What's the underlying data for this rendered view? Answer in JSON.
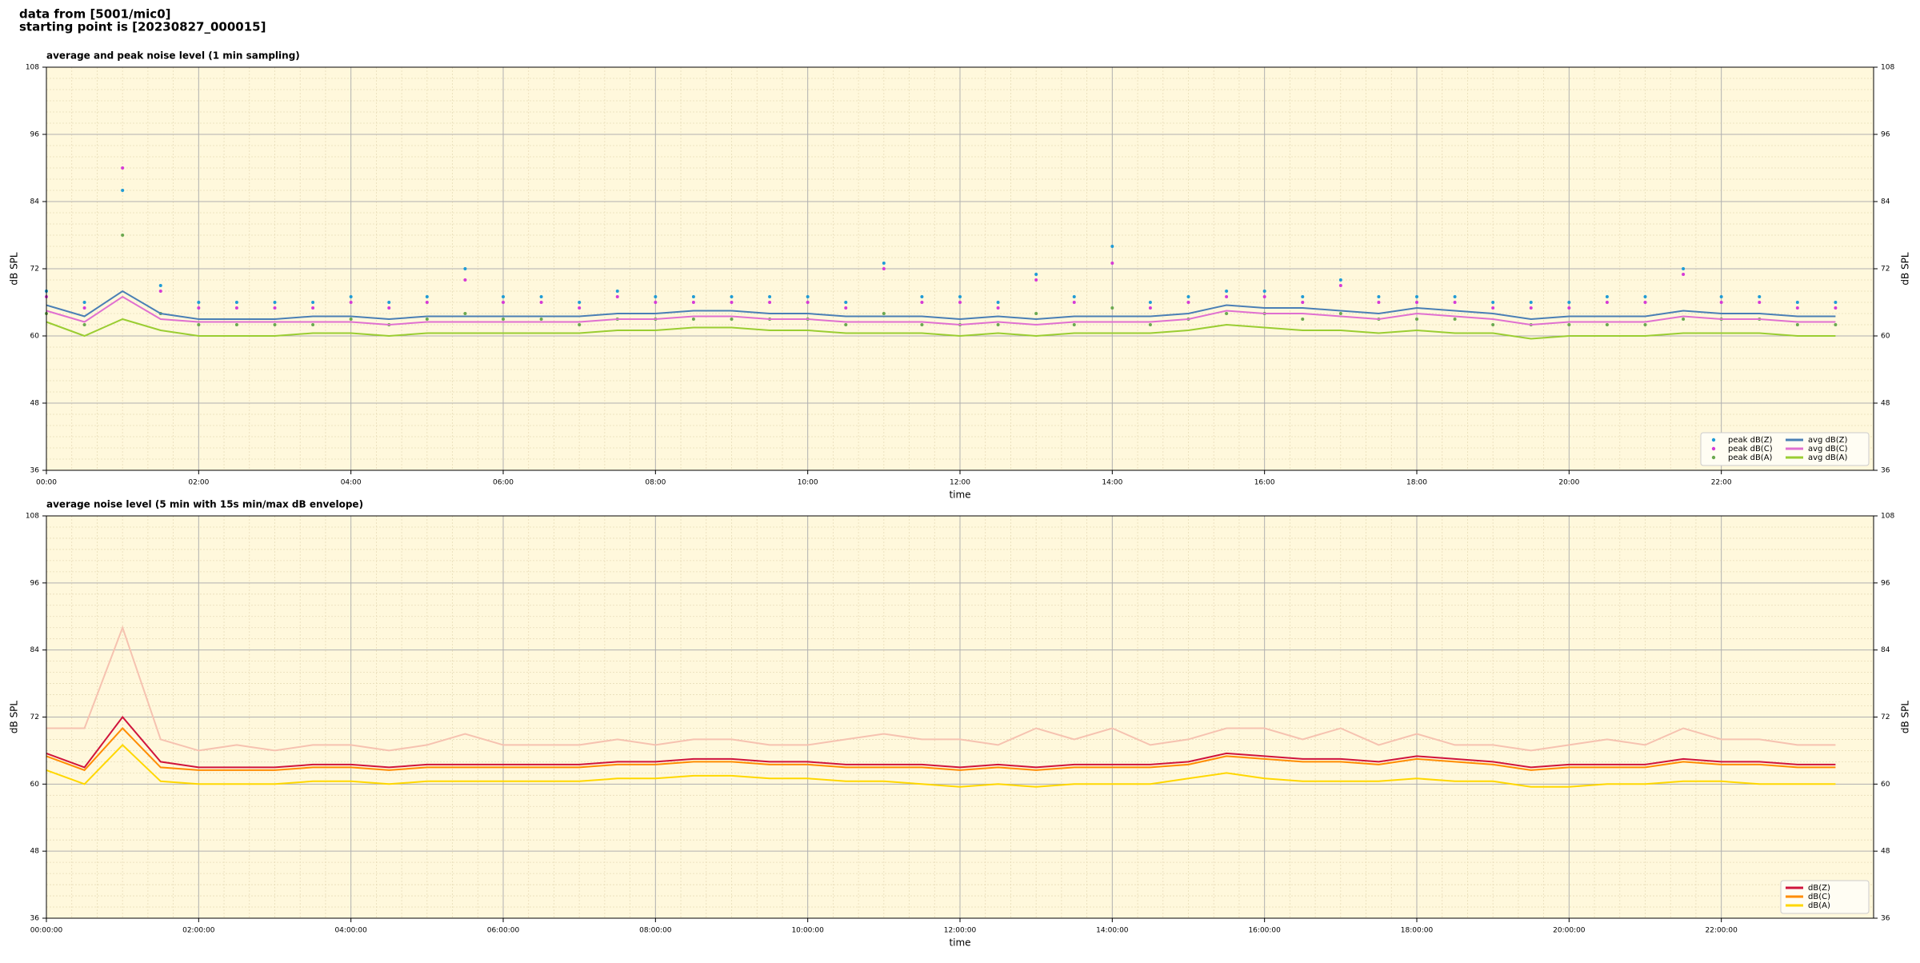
{
  "header": {
    "line1": "data from [5001/mic0]",
    "line2": "starting point is [20230827_000015]"
  },
  "chart_data": [
    {
      "type": "line",
      "title": "average and peak noise level (1 min sampling)",
      "xlabel": "time",
      "ylabel": "dB SPL",
      "xlim": [
        0,
        24
      ],
      "ylim": [
        36,
        108
      ],
      "yticks": [
        36,
        48,
        60,
        72,
        84,
        96,
        108
      ],
      "xticks": [
        {
          "value": 0,
          "label": "00:00"
        },
        {
          "value": 2,
          "label": "02:00"
        },
        {
          "value": 4,
          "label": "04:00"
        },
        {
          "value": 6,
          "label": "06:00"
        },
        {
          "value": 8,
          "label": "08:00"
        },
        {
          "value": 10,
          "label": "10:00"
        },
        {
          "value": 12,
          "label": "12:00"
        },
        {
          "value": 14,
          "label": "14:00"
        },
        {
          "value": 16,
          "label": "16:00"
        },
        {
          "value": 18,
          "label": "18:00"
        },
        {
          "value": 20,
          "label": "20:00"
        },
        {
          "value": 22,
          "label": "22:00"
        }
      ],
      "grid": true,
      "legend": "lower right",
      "background": "#fff8dc",
      "x": [
        0,
        0.5,
        1,
        1.5,
        2,
        2.5,
        3,
        3.5,
        4,
        4.5,
        5,
        5.5,
        6,
        6.5,
        7,
        7.5,
        8,
        8.5,
        9,
        9.5,
        10,
        10.5,
        11,
        11.5,
        12,
        12.5,
        13,
        13.5,
        14,
        14.5,
        15,
        15.5,
        16,
        16.5,
        17,
        17.5,
        18,
        18.5,
        19,
        19.5,
        20,
        20.5,
        21,
        21.5,
        22,
        22.5,
        23,
        23.5
      ],
      "series": [
        {
          "name": "peak dB(Z)",
          "style": "points",
          "color": "#1f9bd6",
          "values": [
            68,
            66,
            86,
            69,
            66,
            66,
            66,
            66,
            67,
            66,
            67,
            72,
            67,
            67,
            66,
            68,
            67,
            67,
            67,
            67,
            67,
            66,
            73,
            67,
            67,
            66,
            71,
            67,
            76,
            66,
            67,
            68,
            68,
            67,
            70,
            67,
            67,
            67,
            66,
            66,
            66,
            67,
            67,
            72,
            67,
            67,
            66,
            66
          ]
        },
        {
          "name": "peak dB(C)",
          "style": "points",
          "color": "#d63ad6",
          "values": [
            67,
            65,
            90,
            68,
            65,
            65,
            65,
            65,
            66,
            65,
            66,
            70,
            66,
            66,
            65,
            67,
            66,
            66,
            66,
            66,
            66,
            65,
            72,
            66,
            66,
            65,
            70,
            66,
            73,
            65,
            66,
            67,
            67,
            66,
            69,
            66,
            66,
            66,
            65,
            65,
            65,
            66,
            66,
            71,
            66,
            66,
            65,
            65
          ]
        },
        {
          "name": "peak dB(A)",
          "style": "points",
          "color": "#6aa84f",
          "values": [
            64,
            62,
            78,
            64,
            62,
            62,
            62,
            62,
            63,
            62,
            63,
            64,
            63,
            63,
            62,
            63,
            63,
            63,
            63,
            63,
            63,
            62,
            64,
            62,
            62,
            62,
            64,
            62,
            65,
            62,
            63,
            64,
            64,
            63,
            64,
            63,
            63,
            63,
            62,
            62,
            62,
            62,
            62,
            63,
            63,
            63,
            62,
            62
          ]
        },
        {
          "name": "avg dB(Z)",
          "style": "line",
          "color": "#4a7fb5",
          "values": [
            65.5,
            63.5,
            68,
            64,
            63,
            63,
            63,
            63.5,
            63.5,
            63,
            63.5,
            63.5,
            63.5,
            63.5,
            63.5,
            64,
            64,
            64.5,
            64.5,
            64,
            64,
            63.5,
            63.5,
            63.5,
            63,
            63.5,
            63,
            63.5,
            63.5,
            63.5,
            64,
            65.5,
            65,
            65,
            64.5,
            64,
            65,
            64.5,
            64,
            63,
            63.5,
            63.5,
            63.5,
            64.5,
            64,
            64,
            63.5,
            63.5
          ]
        },
        {
          "name": "avg dB(C)",
          "style": "line",
          "color": "#e070d0",
          "values": [
            64.5,
            62.5,
            67,
            63,
            62.5,
            62.5,
            62.5,
            62.5,
            62.5,
            62,
            62.5,
            62.5,
            62.5,
            62.5,
            62.5,
            63,
            63,
            63.5,
            63.5,
            63,
            63,
            62.5,
            62.5,
            62.5,
            62,
            62.5,
            62,
            62.5,
            62.5,
            62.5,
            63,
            64.5,
            64,
            64,
            63.5,
            63,
            64,
            63.5,
            63,
            62,
            62.5,
            62.5,
            62.5,
            63.5,
            63,
            63,
            62.5,
            62.5
          ]
        },
        {
          "name": "avg dB(A)",
          "style": "line",
          "color": "#9acd32",
          "values": [
            62.5,
            60,
            63,
            61,
            60,
            60,
            60,
            60.5,
            60.5,
            60,
            60.5,
            60.5,
            60.5,
            60.5,
            60.5,
            61,
            61,
            61.5,
            61.5,
            61,
            61,
            60.5,
            60.5,
            60.5,
            60,
            60.5,
            60,
            60.5,
            60.5,
            60.5,
            61,
            62,
            61.5,
            61,
            61,
            60.5,
            61,
            60.5,
            60.5,
            59.5,
            60,
            60,
            60,
            60.5,
            60.5,
            60.5,
            60,
            60
          ]
        }
      ]
    },
    {
      "type": "line",
      "title": "average noise level (5 min with 15s min/max dB envelope)",
      "xlabel": "time",
      "ylabel": "dB SPL",
      "xlim": [
        0,
        24
      ],
      "ylim": [
        36,
        108
      ],
      "yticks": [
        36,
        48,
        60,
        72,
        84,
        96,
        108
      ],
      "xticks": [
        {
          "value": 0,
          "label": "00:00:00"
        },
        {
          "value": 2,
          "label": "02:00:00"
        },
        {
          "value": 4,
          "label": "04:00:00"
        },
        {
          "value": 6,
          "label": "06:00:00"
        },
        {
          "value": 8,
          "label": "08:00:00"
        },
        {
          "value": 10,
          "label": "10:00:00"
        },
        {
          "value": 12,
          "label": "12:00:00"
        },
        {
          "value": 14,
          "label": "14:00:00"
        },
        {
          "value": 16,
          "label": "16:00:00"
        },
        {
          "value": 18,
          "label": "18:00:00"
        },
        {
          "value": 20,
          "label": "20:00:00"
        },
        {
          "value": 22,
          "label": "22:00:00"
        }
      ],
      "grid": true,
      "legend": "lower right",
      "background": "#fff8dc",
      "x": [
        0,
        0.5,
        1,
        1.5,
        2,
        2.5,
        3,
        3.5,
        4,
        4.5,
        5,
        5.5,
        6,
        6.5,
        7,
        7.5,
        8,
        8.5,
        9,
        9.5,
        10,
        10.5,
        11,
        11.5,
        12,
        12.5,
        13,
        13.5,
        14,
        14.5,
        15,
        15.5,
        16,
        16.5,
        17,
        17.5,
        18,
        18.5,
        19,
        19.5,
        20,
        20.5,
        21,
        21.5,
        22,
        22.5,
        23,
        23.5
      ],
      "envelope": {
        "color": "#f6c2b0",
        "values": [
          70,
          70,
          88,
          68,
          66,
          67,
          66,
          67,
          67,
          66,
          67,
          69,
          67,
          67,
          67,
          68,
          67,
          68,
          68,
          67,
          67,
          68,
          69,
          68,
          68,
          67,
          70,
          68,
          70,
          67,
          68,
          70,
          70,
          68,
          70,
          67,
          69,
          67,
          67,
          66,
          67,
          68,
          67,
          70,
          68,
          68,
          67,
          67
        ]
      },
      "series": [
        {
          "name": "dB(Z)",
          "style": "line",
          "color": "#d0143c",
          "values": [
            65.5,
            63,
            72,
            64,
            63,
            63,
            63,
            63.5,
            63.5,
            63,
            63.5,
            63.5,
            63.5,
            63.5,
            63.5,
            64,
            64,
            64.5,
            64.5,
            64,
            64,
            63.5,
            63.5,
            63.5,
            63,
            63.5,
            63,
            63.5,
            63.5,
            63.5,
            64,
            65.5,
            65,
            64.5,
            64.5,
            64,
            65,
            64.5,
            64,
            63,
            63.5,
            63.5,
            63.5,
            64.5,
            64,
            64,
            63.5,
            63.5
          ]
        },
        {
          "name": "dB(C)",
          "style": "line",
          "color": "#ff8c00",
          "values": [
            65,
            62.5,
            70,
            63,
            62.5,
            62.5,
            62.5,
            63,
            63,
            62.5,
            63,
            63,
            63,
            63,
            63,
            63.5,
            63.5,
            64,
            64,
            63.5,
            63.5,
            63,
            63,
            63,
            62.5,
            63,
            62.5,
            63,
            63,
            63,
            63.5,
            65,
            64.5,
            64,
            64,
            63.5,
            64.5,
            64,
            63.5,
            62.5,
            63,
            63,
            63,
            64,
            63.5,
            63.5,
            63,
            63
          ]
        },
        {
          "name": "dB(A)",
          "style": "line",
          "color": "#ffd700",
          "values": [
            62.5,
            60,
            67,
            60.5,
            60,
            60,
            60,
            60.5,
            60.5,
            60,
            60.5,
            60.5,
            60.5,
            60.5,
            60.5,
            61,
            61,
            61.5,
            61.5,
            61,
            61,
            60.5,
            60.5,
            60,
            59.5,
            60,
            59.5,
            60,
            60,
            60,
            61,
            62,
            61,
            60.5,
            60.5,
            60.5,
            61,
            60.5,
            60.5,
            59.5,
            59.5,
            60,
            60,
            60.5,
            60.5,
            60,
            60,
            60
          ]
        }
      ]
    }
  ]
}
